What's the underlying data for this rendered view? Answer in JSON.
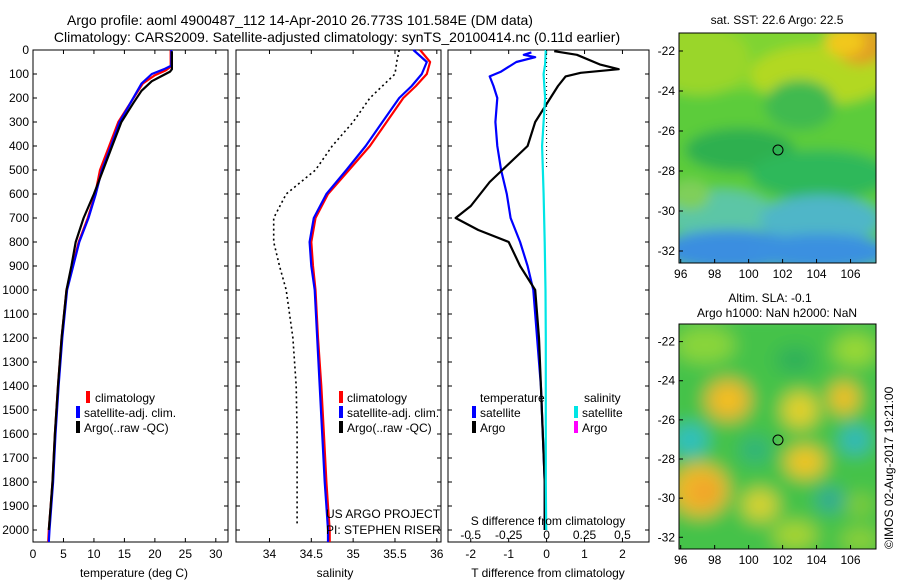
{
  "header": {
    "line1": "Argo profile: aoml 4900487_112 14-Apr-2010 26.773S 101.584E (DM data)",
    "line2": "Climatology: CARS2009. Satellite-adjusted climatology: synTS_20100414.nc (0.11d earlier)"
  },
  "colors": {
    "red": "#ff0000",
    "blue": "#0000ff",
    "black": "#000000",
    "cyan": "#00e5e5",
    "magenta": "#ff00ff"
  },
  "chart_data": [
    {
      "type": "line",
      "panel": "temperature",
      "xlabel": "temperature (deg C)",
      "xlim": [
        0,
        32
      ],
      "ylim": [
        0,
        2050
      ],
      "x_ticks": [
        0,
        5,
        10,
        15,
        20,
        25,
        30
      ],
      "y_ticks": [
        0,
        100,
        200,
        300,
        400,
        500,
        600,
        700,
        800,
        900,
        1000,
        1100,
        1200,
        1300,
        1400,
        1500,
        1600,
        1700,
        1800,
        1900,
        2000
      ],
      "legend": [
        "climatology",
        "satellite-adj. clim.",
        "Argo(..raw -QC)"
      ],
      "series": [
        {
          "name": "climatology",
          "color": "#ff0000",
          "dash": "",
          "points": [
            [
              22.6,
              0
            ],
            [
              22.6,
              70
            ],
            [
              21.8,
              85
            ],
            [
              20,
              105
            ],
            [
              18,
              140
            ],
            [
              16,
              220
            ],
            [
              14,
              300
            ],
            [
              12.5,
              400
            ],
            [
              11,
              500
            ],
            [
              10.2,
              600
            ],
            [
              9,
              700
            ],
            [
              7.5,
              800
            ],
            [
              6.5,
              900
            ],
            [
              5.5,
              1000
            ],
            [
              4.7,
              1200
            ],
            [
              4.1,
              1400
            ],
            [
              3.6,
              1600
            ],
            [
              3.2,
              1800
            ],
            [
              2.9,
              1900
            ],
            [
              2.6,
              2000
            ],
            [
              2.5,
              2050
            ]
          ]
        },
        {
          "name": "satellite-adj. clim.",
          "color": "#0000ff",
          "dash": "",
          "points": [
            [
              22.7,
              0
            ],
            [
              22.7,
              65
            ],
            [
              21.5,
              80
            ],
            [
              19.5,
              100
            ],
            [
              17.8,
              140
            ],
            [
              16,
              220
            ],
            [
              14.2,
              300
            ],
            [
              12.8,
              400
            ],
            [
              11.3,
              500
            ],
            [
              10.3,
              600
            ],
            [
              9.1,
              700
            ],
            [
              7.6,
              800
            ],
            [
              6.6,
              900
            ],
            [
              5.6,
              1000
            ],
            [
              4.8,
              1200
            ],
            [
              4.2,
              1400
            ],
            [
              3.7,
              1600
            ],
            [
              3.3,
              1800
            ],
            [
              3,
              1900
            ],
            [
              2.7,
              2000
            ],
            [
              2.6,
              2050
            ]
          ]
        },
        {
          "name": "Argo(..raw -QC)",
          "color": "#000000",
          "dash": "",
          "points": [
            [
              22.8,
              5
            ],
            [
              22.8,
              80
            ],
            [
              22.5,
              90
            ],
            [
              21,
              110
            ],
            [
              19.5,
              130
            ],
            [
              17.8,
              170
            ],
            [
              16.5,
              220
            ],
            [
              14.5,
              300
            ],
            [
              13,
              400
            ],
            [
              11.5,
              500
            ],
            [
              10,
              600
            ],
            [
              8.3,
              700
            ],
            [
              7,
              800
            ],
            [
              6.3,
              900
            ],
            [
              5.5,
              1000
            ],
            [
              4.7,
              1200
            ],
            [
              4.1,
              1400
            ],
            [
              3.6,
              1600
            ],
            [
              3.2,
              1800
            ],
            [
              2.9,
              1900
            ],
            [
              2.6,
              2000
            ]
          ]
        }
      ]
    },
    {
      "type": "line",
      "panel": "salinity",
      "xlabel": "salinity",
      "xlim": [
        33.6,
        36.05
      ],
      "ylim": [
        0,
        2050
      ],
      "x_ticks": [
        34,
        34.5,
        35,
        35.5,
        36
      ],
      "legend": [
        "climatology",
        "satellite-adj. clim.",
        "Argo(..raw -QC)"
      ],
      "annotation": [
        "US ARGO PROJECT",
        "PI: STEPHEN RISER"
      ],
      "series": [
        {
          "name": "climatology",
          "color": "#ff0000",
          "dash": "",
          "points": [
            [
              35.8,
              0
            ],
            [
              35.92,
              50
            ],
            [
              35.88,
              100
            ],
            [
              35.75,
              150
            ],
            [
              35.6,
              200
            ],
            [
              35.4,
              300
            ],
            [
              35.2,
              400
            ],
            [
              34.95,
              500
            ],
            [
              34.7,
              600
            ],
            [
              34.55,
              700
            ],
            [
              34.5,
              800
            ],
            [
              34.52,
              900
            ],
            [
              34.55,
              1000
            ],
            [
              34.58,
              1200
            ],
            [
              34.62,
              1400
            ],
            [
              34.65,
              1600
            ],
            [
              34.68,
              1800
            ],
            [
              34.7,
              1900
            ],
            [
              34.72,
              2000
            ],
            [
              34.72,
              2050
            ]
          ]
        },
        {
          "name": "satellite-adj. clim.",
          "color": "#0000ff",
          "dash": "",
          "points": [
            [
              35.72,
              0
            ],
            [
              35.88,
              50
            ],
            [
              35.82,
              100
            ],
            [
              35.7,
              150
            ],
            [
              35.55,
              200
            ],
            [
              35.35,
              300
            ],
            [
              35.15,
              400
            ],
            [
              34.92,
              500
            ],
            [
              34.68,
              600
            ],
            [
              34.53,
              700
            ],
            [
              34.48,
              800
            ],
            [
              34.5,
              900
            ],
            [
              34.54,
              1000
            ],
            [
              34.57,
              1200
            ],
            [
              34.6,
              1400
            ],
            [
              34.63,
              1600
            ],
            [
              34.66,
              1800
            ],
            [
              34.68,
              1900
            ],
            [
              34.7,
              2000
            ],
            [
              34.7,
              2050
            ]
          ]
        },
        {
          "name": "Argo(..raw -QC)",
          "color": "#000000",
          "dash": "2,3",
          "points": [
            [
              35.55,
              0
            ],
            [
              35.52,
              50
            ],
            [
              35.5,
              100
            ],
            [
              35.35,
              150
            ],
            [
              35.2,
              200
            ],
            [
              35,
              300
            ],
            [
              34.75,
              400
            ],
            [
              34.55,
              500
            ],
            [
              34.2,
              600
            ],
            [
              34.05,
              700
            ],
            [
              34.05,
              800
            ],
            [
              34.12,
              900
            ],
            [
              34.2,
              1000
            ],
            [
              34.28,
              1200
            ],
            [
              34.32,
              1400
            ],
            [
              34.33,
              1600
            ],
            [
              34.33,
              1800
            ],
            [
              34.33,
              1900
            ],
            [
              34.33,
              1980
            ]
          ]
        }
      ]
    },
    {
      "type": "line",
      "panel": "difference",
      "xlabel": "T difference from climatology",
      "xlabel_top": "S difference from climatology",
      "xlim": [
        -2.6,
        2.7
      ],
      "ylim": [
        0,
        2050
      ],
      "x_ticks_T": [
        -2,
        -1,
        0,
        1,
        2
      ],
      "x_ticks_S_labels": [
        "-0.5",
        "-0.25",
        "0",
        "0.25",
        "0.5"
      ],
      "legend_headers": [
        "temperature",
        "salinity"
      ],
      "legend": [
        "satellite",
        "Argo",
        "satellite",
        "Argo"
      ],
      "series": [
        {
          "name": "temperature satellite",
          "color": "#0000ff",
          "dash": "",
          "points": [
            [
              -0.4,
              10
            ],
            [
              -0.6,
              20
            ],
            [
              -0.3,
              30
            ],
            [
              -0.8,
              50
            ],
            [
              -1.2,
              90
            ],
            [
              -1.5,
              110
            ],
            [
              -1.4,
              150
            ],
            [
              -1.3,
              200
            ],
            [
              -1.35,
              300
            ],
            [
              -1.3,
              400
            ],
            [
              -1.2,
              500
            ],
            [
              -1.05,
              600
            ],
            [
              -0.95,
              700
            ],
            [
              -0.7,
              800
            ],
            [
              -0.5,
              900
            ],
            [
              -0.35,
              1000
            ],
            [
              -0.25,
              1200
            ],
            [
              -0.15,
              1400
            ],
            [
              -0.1,
              1600
            ],
            [
              -0.05,
              1800
            ],
            [
              -0.05,
              2000
            ]
          ]
        },
        {
          "name": "temperature Argo",
          "color": "#000000",
          "dash": "",
          "points": [
            [
              0.2,
              5
            ],
            [
              0.8,
              20
            ],
            [
              1.4,
              60
            ],
            [
              1.9,
              80
            ],
            [
              0.9,
              95
            ],
            [
              0.5,
              110
            ],
            [
              0.3,
              150
            ],
            [
              0.1,
              200
            ],
            [
              -0.3,
              300
            ],
            [
              -0.5,
              400
            ],
            [
              -1.5,
              550
            ],
            [
              -2,
              650
            ],
            [
              -2.4,
              700
            ],
            [
              -1.8,
              750
            ],
            [
              -1.0,
              800
            ],
            [
              -0.7,
              900
            ],
            [
              -0.3,
              1000
            ],
            [
              -0.2,
              1200
            ],
            [
              -0.15,
              1400
            ],
            [
              -0.1,
              1600
            ],
            [
              -0.05,
              1800
            ],
            [
              -0.05,
              2000
            ]
          ]
        },
        {
          "name": "salinity satellite",
          "color": "#00e5e5",
          "dash": "",
          "points": [
            [
              -0.02,
              0
            ],
            [
              -0.04,
              60
            ],
            [
              -0.08,
              100
            ],
            [
              -0.04,
              200
            ],
            [
              -0.12,
              400
            ],
            [
              -0.08,
              600
            ],
            [
              -0.05,
              800
            ],
            [
              -0.03,
              1000
            ],
            [
              -0.02,
              1200
            ],
            [
              -0.02,
              1500
            ],
            [
              -0.02,
              1800
            ],
            [
              -0.01,
              2000
            ]
          ]
        },
        {
          "name": "zero line",
          "color": "#000000",
          "dash": "1,3",
          "points": [
            [
              0,
              0
            ],
            [
              0,
              500
            ]
          ]
        }
      ]
    },
    {
      "type": "heatmap",
      "panel": "sst",
      "title": "sat. SST: 22.6 Argo: 22.5",
      "x_ticks": [
        96,
        98,
        100,
        102,
        104,
        106
      ],
      "y_ticks": [
        -22,
        -24,
        -26,
        -28,
        -30,
        -32
      ],
      "xlim": [
        95.9,
        107.5
      ],
      "ylim": [
        -32.6,
        -21.1
      ],
      "marker": [
        101.584,
        -26.773
      ]
    },
    {
      "type": "heatmap",
      "panel": "sla",
      "title": "Altim. SLA: -0.1",
      "subtitle": "Argo h1000: NaN h2000: NaN",
      "x_ticks": [
        96,
        98,
        100,
        102,
        104,
        106
      ],
      "y_ticks": [
        -22,
        -24,
        -26,
        -28,
        -30,
        -32
      ],
      "xlim": [
        95.9,
        107.5
      ],
      "ylim": [
        -32.6,
        -21.1
      ],
      "marker": [
        101.584,
        -26.773
      ]
    }
  ],
  "footer": {
    "stamp": "©IMOS 02-Aug-2017 19:21:00"
  }
}
